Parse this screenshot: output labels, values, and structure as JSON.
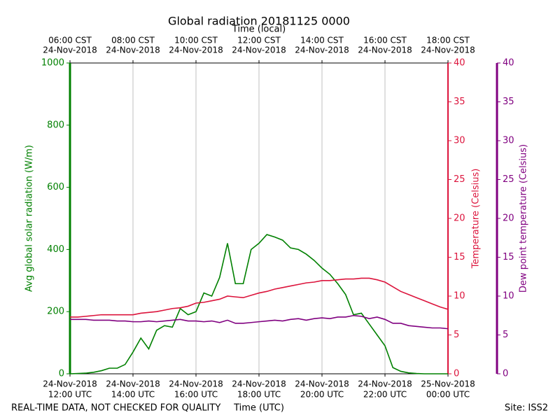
{
  "chart_data": {
    "type": "line",
    "title": "Global radiation 20181125 0000",
    "xlabel": "Time (UTC)",
    "x2label": "Time (local)",
    "ylabel": "Avg global solar radiation (W/m)",
    "y2label": "Temperature (Celsius)",
    "y3label": "Dew point temperature (Celsius)",
    "footer_left": "REAL-TIME DATA, NOT CHECKED FOR QUALITY",
    "footer_right": "Site: ISS2",
    "grid": true,
    "xlim": [
      12,
      24
    ],
    "xticks": [
      {
        "value": 12,
        "label": [
          "24-Nov-2018",
          "12:00 UTC"
        ]
      },
      {
        "value": 14,
        "label": [
          "24-Nov-2018",
          "14:00 UTC"
        ]
      },
      {
        "value": 16,
        "label": [
          "24-Nov-2018",
          "16:00 UTC"
        ]
      },
      {
        "value": 18,
        "label": [
          "24-Nov-2018",
          "18:00 UTC"
        ]
      },
      {
        "value": 20,
        "label": [
          "24-Nov-2018",
          "20:00 UTC"
        ]
      },
      {
        "value": 22,
        "label": [
          "24-Nov-2018",
          "22:00 UTC"
        ]
      },
      {
        "value": 24,
        "label": [
          "25-Nov-2018",
          "00:00 UTC"
        ]
      }
    ],
    "x2ticks": [
      {
        "value": 12,
        "label": [
          "06:00 CST",
          "24-Nov-2018"
        ]
      },
      {
        "value": 14,
        "label": [
          "08:00 CST",
          "24-Nov-2018"
        ]
      },
      {
        "value": 16,
        "label": [
          "10:00 CST",
          "24-Nov-2018"
        ]
      },
      {
        "value": 18,
        "label": [
          "12:00 CST",
          "24-Nov-2018"
        ]
      },
      {
        "value": 20,
        "label": [
          "14:00 CST",
          "24-Nov-2018"
        ]
      },
      {
        "value": 22,
        "label": [
          "16:00 CST",
          "24-Nov-2018"
        ]
      },
      {
        "value": 24,
        "label": [
          "18:00 CST",
          "24-Nov-2018"
        ]
      }
    ],
    "ylim": [
      0,
      1000
    ],
    "yticks": [
      0,
      200,
      400,
      600,
      800,
      1000
    ],
    "ycolor": "#008000",
    "y2lim": [
      0,
      40
    ],
    "y2ticks": [
      0,
      5,
      10,
      15,
      20,
      25,
      30,
      35,
      40
    ],
    "y2color": "#dc143c",
    "y3lim": [
      0,
      40
    ],
    "y3ticks": [
      0,
      5,
      10,
      15,
      20,
      25,
      30,
      35,
      40
    ],
    "y3color": "#800080",
    "x": [
      12,
      12.25,
      12.5,
      12.75,
      13,
      13.25,
      13.5,
      13.75,
      14,
      14.25,
      14.5,
      14.75,
      15,
      15.25,
      15.5,
      15.75,
      16,
      16.25,
      16.5,
      16.75,
      17,
      17.25,
      17.5,
      17.75,
      18,
      18.25,
      18.5,
      18.75,
      19,
      19.25,
      19.5,
      19.75,
      20,
      20.25,
      20.5,
      20.75,
      21,
      21.25,
      21.5,
      21.75,
      22,
      22.25,
      22.5,
      22.75,
      23,
      23.25,
      23.5,
      23.75,
      24
    ],
    "series": [
      {
        "color": "#008000",
        "axis": "y",
        "values": [
          0,
          1,
          2,
          5,
          10,
          18,
          18,
          30,
          70,
          115,
          80,
          140,
          155,
          150,
          210,
          190,
          200,
          260,
          250,
          310,
          420,
          290,
          290,
          400,
          420,
          448,
          440,
          430,
          405,
          400,
          385,
          365,
          340,
          320,
          290,
          255,
          190,
          195,
          160,
          125,
          90,
          20,
          8,
          3,
          1,
          0,
          0,
          0,
          0
        ]
      },
      {
        "color": "#dc143c",
        "axis": "y2",
        "values": [
          7.3,
          7.3,
          7.4,
          7.5,
          7.6,
          7.6,
          7.6,
          7.6,
          7.6,
          7.8,
          7.9,
          8.0,
          8.2,
          8.4,
          8.5,
          8.7,
          9.1,
          9.2,
          9.4,
          9.6,
          10.0,
          9.9,
          9.8,
          10.1,
          10.4,
          10.6,
          10.9,
          11.1,
          11.3,
          11.5,
          11.7,
          11.8,
          12.0,
          12.0,
          12.1,
          12.2,
          12.2,
          12.3,
          12.3,
          12.1,
          11.8,
          11.2,
          10.6,
          10.2,
          9.8,
          9.4,
          9.0,
          8.6,
          8.3
        ]
      },
      {
        "color": "#800080",
        "axis": "y3",
        "values": [
          7.0,
          7.0,
          7.0,
          6.9,
          6.9,
          6.9,
          6.8,
          6.8,
          6.7,
          6.7,
          6.8,
          6.7,
          6.8,
          6.9,
          7.0,
          6.8,
          6.8,
          6.7,
          6.8,
          6.6,
          6.9,
          6.5,
          6.5,
          6.6,
          6.7,
          6.8,
          6.9,
          6.8,
          7.0,
          7.1,
          6.9,
          7.1,
          7.2,
          7.1,
          7.3,
          7.3,
          7.5,
          7.4,
          7.1,
          7.3,
          7.0,
          6.5,
          6.5,
          6.2,
          6.1,
          6.0,
          5.9,
          5.9,
          5.8
        ]
      }
    ]
  }
}
